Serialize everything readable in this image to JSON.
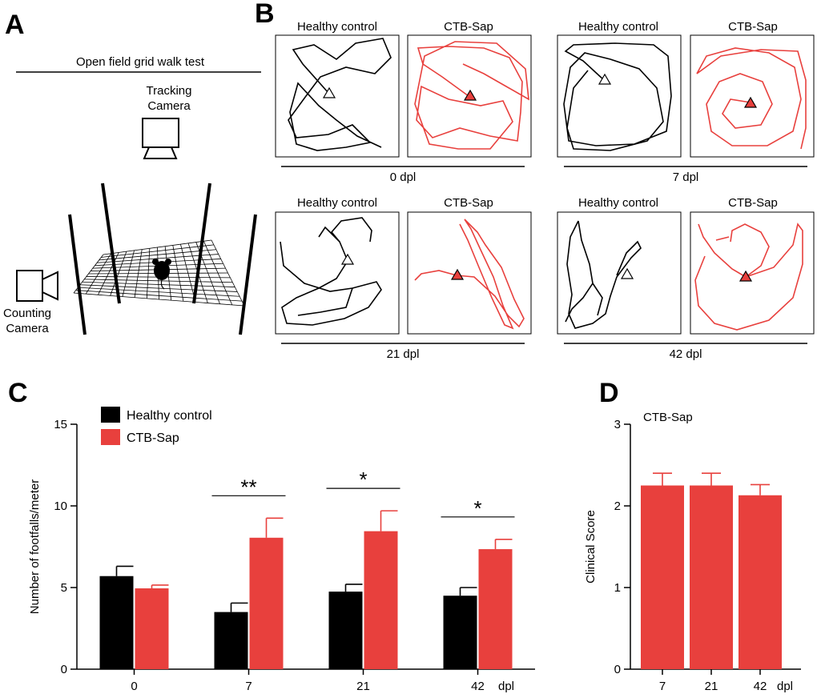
{
  "panel_labels": {
    "a": "A",
    "b": "B",
    "c": "C",
    "d": "D"
  },
  "panel_a": {
    "title": "Open field grid walk test",
    "tracking_camera_line1": "Tracking",
    "tracking_camera_line2": "Camera",
    "counting_camera_line1": "Counting",
    "counting_camera_line2": "Camera"
  },
  "panel_b": {
    "groups": [
      {
        "time": "0 dpl",
        "left": "Healthy control",
        "right": "CTB-Sap"
      },
      {
        "time": "7 dpl",
        "left": "Healthy control",
        "right": "CTB-Sap"
      },
      {
        "time": "21 dpl",
        "left": "Healthy control",
        "right": "CTB-Sap"
      },
      {
        "time": "42 dpl",
        "left": "Healthy control",
        "right": "CTB-Sap"
      }
    ]
  },
  "colors": {
    "control": "#000000",
    "sap": "#e8403d"
  },
  "chart_data": [
    {
      "type": "bar",
      "panel": "C",
      "ylabel": "Number of footfalls/meter",
      "xlabel": "dpl",
      "categories": [
        "0",
        "7",
        "21",
        "42"
      ],
      "ylim": [
        0,
        15
      ],
      "yticks": [
        "0",
        "5",
        "10",
        "15"
      ],
      "series": [
        {
          "name": "Healthy control",
          "values": [
            5.7,
            3.5,
            4.75,
            4.5
          ],
          "errors": [
            0.6,
            0.55,
            0.45,
            0.5
          ]
        },
        {
          "name": "CTB-Sap",
          "values": [
            4.95,
            8.05,
            8.45,
            7.35
          ],
          "errors": [
            0.2,
            1.2,
            1.25,
            0.6
          ]
        }
      ],
      "significance": [
        "",
        "**",
        "*",
        "*"
      ]
    },
    {
      "type": "bar",
      "panel": "D",
      "title": "CTB-Sap",
      "ylabel": "Clinical Score",
      "xlabel": "dpl",
      "categories": [
        "7",
        "21",
        "42"
      ],
      "ylim": [
        0,
        3
      ],
      "yticks": [
        "0",
        "1",
        "2",
        "3"
      ],
      "series": [
        {
          "name": "CTB-Sap",
          "values": [
            2.25,
            2.25,
            2.13
          ],
          "errors": [
            0.15,
            0.15,
            0.13
          ]
        }
      ]
    }
  ]
}
